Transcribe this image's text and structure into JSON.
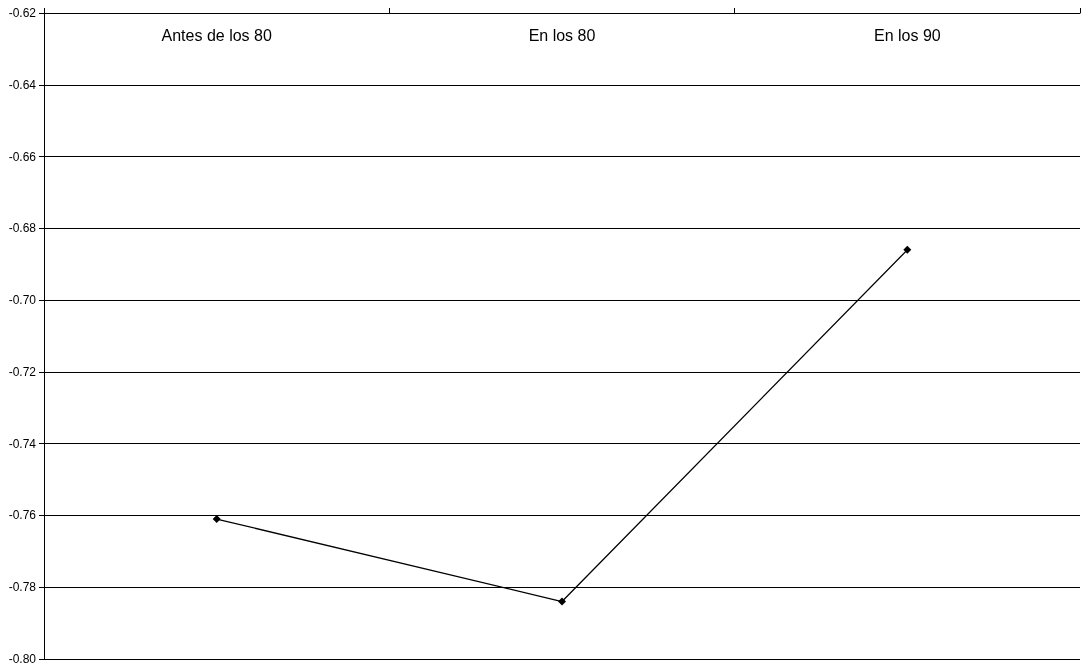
{
  "chart_data": {
    "type": "line",
    "categories": [
      "Antes de los 80",
      "En los 80",
      "En los 90"
    ],
    "series": [
      {
        "color": "#000000",
        "values": [
          -0.761,
          -0.784,
          -0.686
        ]
      }
    ],
    "ylim": [
      -0.8,
      -0.62
    ],
    "yticks": [
      {
        "value": -0.8,
        "label": "-0.80"
      },
      -0.78,
      -0.76,
      -0.74,
      -0.72,
      {
        "value": -0.7,
        "label": "-0.70"
      },
      -0.68,
      -0.66,
      -0.64,
      -0.62
    ],
    "grid": "y",
    "marker": "diamond",
    "line_style": "solid"
  }
}
